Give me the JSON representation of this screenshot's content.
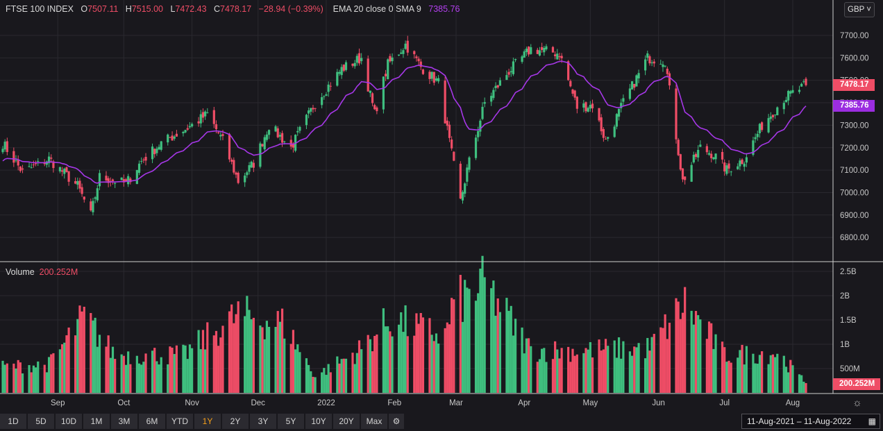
{
  "legend": {
    "symbol": "FTSE 100 INDEX",
    "o_label": "O",
    "o_value": "7507.11",
    "h_label": "H",
    "h_value": "7515.00",
    "l_label": "L",
    "l_value": "7472.43",
    "c_label": "C",
    "c_value": "7478.17",
    "change": "−28.94 (−0.39%)",
    "indicator_label": "EMA 20 close 0 SMA 9",
    "indicator_value": "7385.76"
  },
  "volume_legend": {
    "label": "Volume",
    "value": "200.252M"
  },
  "currency_button": "GBP ˅",
  "price_tags": {
    "last": "7478.17",
    "ema": "7385.76",
    "volume": "200.252M"
  },
  "toolbar": {
    "ranges": [
      "1D",
      "5D",
      "10D",
      "1M",
      "3M",
      "6M",
      "YTD",
      "1Y",
      "2Y",
      "3Y",
      "5Y",
      "10Y",
      "20Y",
      "Max"
    ],
    "active": "1Y"
  },
  "date_range": "11-Aug-2021  –  11-Aug-2022",
  "colors": {
    "up": "#3fbf7f",
    "down": "#ef4d66",
    "ema": "#a637e8",
    "background": "#19181d",
    "grid": "#2a292f"
  },
  "icons": {
    "settings": "gear-icon",
    "calendar": "calendar-icon",
    "theme": "sun-icon"
  },
  "chart_data": [
    {
      "type": "candlestick",
      "title": "FTSE 100 INDEX",
      "ylim": [
        6700,
        7850
      ],
      "y_ticks": [
        "6800.00",
        "6900.00",
        "7000.00",
        "7100.00",
        "7200.00",
        "7300.00",
        "7400.00",
        "7500.00",
        "7600.00",
        "7700.00"
      ],
      "x_ticks": [
        "Sep",
        "Oct",
        "Nov",
        "Dec",
        "2022",
        "Feb",
        "Mar",
        "Apr",
        "May",
        "Jun",
        "Jul",
        "Aug"
      ],
      "close_anchors": [
        [
          "2021-08-11",
          7220
        ],
        [
          "2021-08-20",
          7090
        ],
        [
          "2021-09-01",
          7150
        ],
        [
          "2021-09-14",
          7030
        ],
        [
          "2021-09-20",
          6900
        ],
        [
          "2021-09-24",
          7070
        ],
        [
          "2021-10-06",
          7040
        ],
        [
          "2021-10-13",
          7140
        ],
        [
          "2021-10-22",
          7220
        ],
        [
          "2021-11-05",
          7300
        ],
        [
          "2021-11-12",
          7350
        ],
        [
          "2021-11-19",
          7230
        ],
        [
          "2021-11-26",
          7050
        ],
        [
          "2021-12-03",
          7130
        ],
        [
          "2021-12-10",
          7300
        ],
        [
          "2021-12-20",
          7200
        ],
        [
          "2021-12-31",
          7400
        ],
        [
          "2022-01-12",
          7550
        ],
        [
          "2022-01-21",
          7600
        ],
        [
          "2022-01-27",
          7350
        ],
        [
          "2022-02-02",
          7570
        ],
        [
          "2022-02-10",
          7660
        ],
        [
          "2022-02-17",
          7560
        ],
        [
          "2022-02-25",
          7490
        ],
        [
          "2022-03-07",
          6960
        ],
        [
          "2022-03-10",
          7100
        ],
        [
          "2022-03-18",
          7400
        ],
        [
          "2022-03-29",
          7540
        ],
        [
          "2022-04-08",
          7640
        ],
        [
          "2022-04-21",
          7620
        ],
        [
          "2022-04-29",
          7380
        ],
        [
          "2022-05-06",
          7390
        ],
        [
          "2022-05-12",
          7230
        ],
        [
          "2022-05-20",
          7400
        ],
        [
          "2022-05-31",
          7600
        ],
        [
          "2022-06-08",
          7590
        ],
        [
          "2022-06-16",
          7050
        ],
        [
          "2022-06-24",
          7200
        ],
        [
          "2022-06-30",
          7170
        ],
        [
          "2022-07-06",
          7100
        ],
        [
          "2022-07-14",
          7150
        ],
        [
          "2022-07-22",
          7300
        ],
        [
          "2022-08-01",
          7420
        ],
        [
          "2022-08-11",
          7478
        ]
      ],
      "last_candle": {
        "open": 7507.11,
        "high": 7515.0,
        "low": 7472.43,
        "close": 7478.17
      },
      "series": [
        {
          "name": "EMA 20 close 0 SMA 9",
          "last": 7385.76
        }
      ]
    },
    {
      "type": "bar",
      "title": "Volume",
      "y_ticks": [
        "500M",
        "1B",
        "1.5B",
        "2B",
        "2.5B"
      ],
      "ylim": [
        0,
        2.6
      ],
      "unit": "B",
      "volume_anchors": [
        [
          "2021-08-11",
          0.55
        ],
        [
          "2021-09-01",
          0.6
        ],
        [
          "2021-09-17",
          1.6
        ],
        [
          "2021-10-01",
          0.8
        ],
        [
          "2021-11-01",
          0.8
        ],
        [
          "2021-11-26",
          1.65
        ],
        [
          "2021-12-17",
          1.45
        ],
        [
          "2021-12-31",
          0.35
        ],
        [
          "2022-01-20",
          0.9
        ],
        [
          "2022-02-03",
          1.55
        ],
        [
          "2022-02-28",
          1.2
        ],
        [
          "2022-03-04",
          1.9
        ],
        [
          "2022-03-09",
          2.0
        ],
        [
          "2022-03-18",
          2.3
        ],
        [
          "2022-04-08",
          0.9
        ],
        [
          "2022-04-29",
          0.9
        ],
        [
          "2022-06-01",
          0.95
        ],
        [
          "2022-06-17",
          1.9
        ],
        [
          "2022-07-05",
          0.8
        ],
        [
          "2022-07-29",
          0.85
        ],
        [
          "2022-08-11",
          0.2
        ]
      ],
      "last": "200.252M"
    }
  ]
}
